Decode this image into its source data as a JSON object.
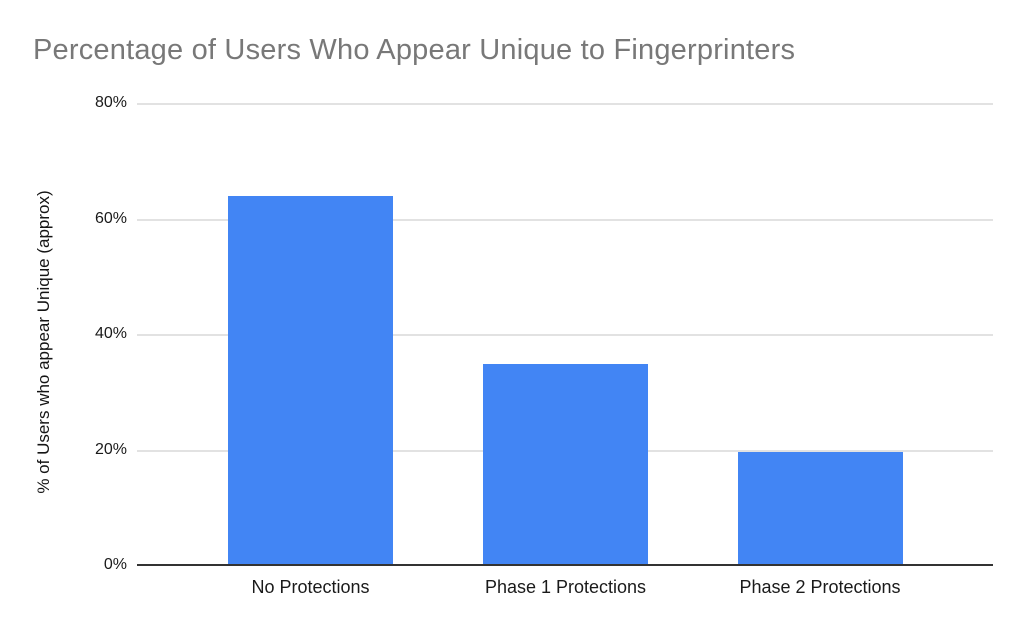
{
  "page": {
    "background": "#ffffff"
  },
  "chart_data": {
    "type": "bar",
    "title": "Percentage of Users Who Appear Unique to Fingerprinters",
    "categories": [
      "No Protections",
      "Phase 1 Protections",
      "Phase 2 Protections"
    ],
    "values": [
      64,
      35,
      19.8
    ],
    "xlabel": "",
    "ylabel": "% of Users who appear Unique (approx)",
    "ylim": [
      0,
      80
    ],
    "y_ticks": [
      {
        "value": 0,
        "label": "0%"
      },
      {
        "value": 20,
        "label": "20%"
      },
      {
        "value": 40,
        "label": "40%"
      },
      {
        "value": 60,
        "label": "60%"
      },
      {
        "value": 80,
        "label": "80%"
      }
    ],
    "grid": "horizontal",
    "legend": "none",
    "colors": {
      "bar": "#4285f4",
      "title_text": "#787878",
      "axis_text": "#1a1a1a",
      "gridline": "#e2e2e2",
      "baseline": "#333333"
    }
  }
}
